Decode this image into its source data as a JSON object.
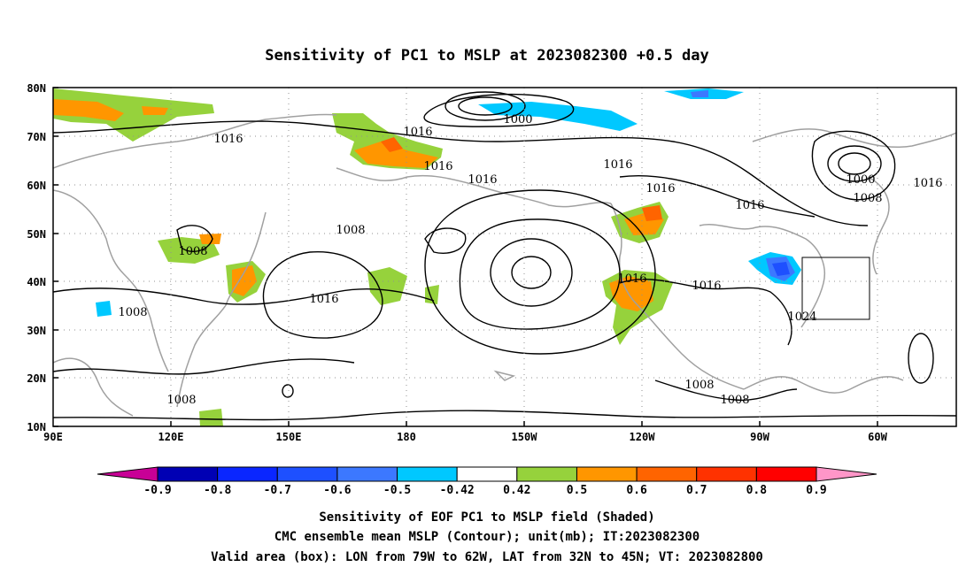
{
  "title": "Sensitivity of PC1 to MSLP at 2023082300 +0.5 day",
  "lat_labels": [
    "80N",
    "70N",
    "60N",
    "50N",
    "40N",
    "30N",
    "20N",
    "10N"
  ],
  "lon_labels": [
    "90E",
    "120E",
    "150E",
    "180",
    "150W",
    "120W",
    "90W",
    "60W"
  ],
  "contour_labels": [
    {
      "text": "1000",
      "id": "c1000a"
    },
    {
      "text": "1000",
      "id": "c1000b"
    },
    {
      "text": "1008",
      "id": "c1008a"
    },
    {
      "text": "1008",
      "id": "c1008b"
    },
    {
      "text": "1008",
      "id": "c1008c"
    },
    {
      "text": "1008",
      "id": "c1008d"
    },
    {
      "text": "1008",
      "id": "c1008e"
    },
    {
      "text": "1008",
      "id": "c1008f"
    },
    {
      "text": "1008",
      "id": "c1008g"
    },
    {
      "text": "1016",
      "id": "c1016a"
    },
    {
      "text": "1016",
      "id": "c1016b"
    },
    {
      "text": "1016",
      "id": "c1016c"
    },
    {
      "text": "1016",
      "id": "c1016d"
    },
    {
      "text": "1016",
      "id": "c1016e"
    },
    {
      "text": "1016",
      "id": "c1016f"
    },
    {
      "text": "1016",
      "id": "c1016g"
    },
    {
      "text": "1016",
      "id": "c1016h"
    },
    {
      "text": "1016",
      "id": "c1016i"
    },
    {
      "text": "1016",
      "id": "c1016j"
    },
    {
      "text": "1016",
      "id": "c1016k"
    },
    {
      "text": "1024",
      "id": "c1024"
    }
  ],
  "colorbar": {
    "colors": [
      "#0000b4",
      "#0a26ff",
      "#1e50ff",
      "#3c78ff",
      "#00c8ff",
      "#ffffff",
      "#96d23c",
      "#ff9600",
      "#ff6400",
      "#ff3200",
      "#ff0000"
    ],
    "low_arrow_color": "#c80096",
    "high_arrow_color": "#ff96c8",
    "labels": [
      "-0.9",
      "-0.8",
      "-0.7",
      "-0.6",
      "-0.5",
      "-0.42",
      "0.42",
      "0.5",
      "0.6",
      "0.7",
      "0.8",
      "0.9"
    ]
  },
  "caption": {
    "line1": "Sensitivity of EOF PC1 to MSLP field (Shaded)",
    "line2": "CMC ensemble mean MSLP (Contour); unit(mb); IT:2023082300",
    "line3": "Valid area (box): LON from 79W to 62W, LAT from 32N to 45N; VT: 2023082800"
  }
}
